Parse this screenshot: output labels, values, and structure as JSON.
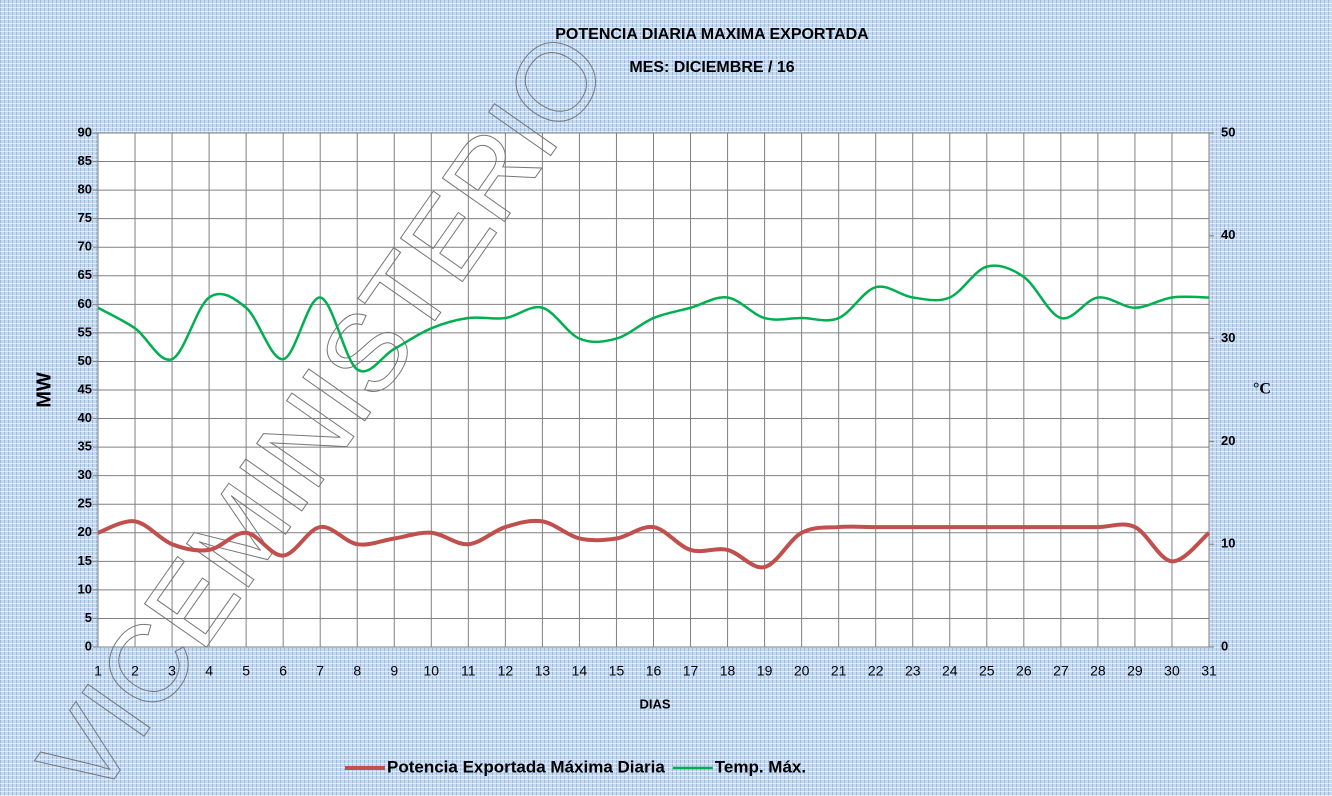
{
  "watermark": "VICEMINISTERIO",
  "chart_data": {
    "type": "line",
    "title": "POTENCIA DIARIA MAXIMA EXPORTADA",
    "subtitle": "MES:  DICIEMBRE / 16",
    "x_label": "DIAS",
    "y_label": "MW",
    "y2_label": "°C",
    "categories": [
      "1",
      "2",
      "3",
      "4",
      "5",
      "6",
      "7",
      "8",
      "9",
      "10",
      "11",
      "12",
      "13",
      "14",
      "15",
      "16",
      "17",
      "18",
      "19",
      "20",
      "21",
      "22",
      "23",
      "24",
      "25",
      "26",
      "27",
      "28",
      "29",
      "30",
      "31"
    ],
    "ylim": [
      0,
      90
    ],
    "yticks": [
      0,
      5,
      10,
      15,
      20,
      25,
      30,
      35,
      40,
      45,
      50,
      55,
      60,
      65,
      70,
      75,
      80,
      85,
      90
    ],
    "y2lim": [
      0,
      50
    ],
    "y2ticks": [
      0,
      10,
      20,
      30,
      40,
      50
    ],
    "grid": true,
    "smooth": true,
    "legend": "bottom",
    "series": [
      {
        "name": "Potencia Exportada Máxima Diaria",
        "color": "#c0504d",
        "values": [
          20,
          22,
          18,
          17,
          20,
          16,
          21,
          18,
          19,
          20,
          18,
          21,
          22,
          19,
          19,
          21,
          17,
          17,
          14,
          20,
          21,
          21,
          21,
          21,
          21,
          21,
          21,
          21,
          21,
          15,
          20
        ]
      },
      {
        "name": "Temp. Máx.",
        "color": "#00b050",
        "axis": "y2",
        "values": [
          33,
          31,
          28,
          34,
          33,
          28,
          34,
          27,
          29,
          31,
          32,
          32,
          33,
          30,
          30,
          32,
          33,
          34,
          32,
          32,
          32,
          35,
          34,
          34,
          37,
          36,
          32,
          34,
          33,
          34,
          34
        ]
      }
    ]
  }
}
